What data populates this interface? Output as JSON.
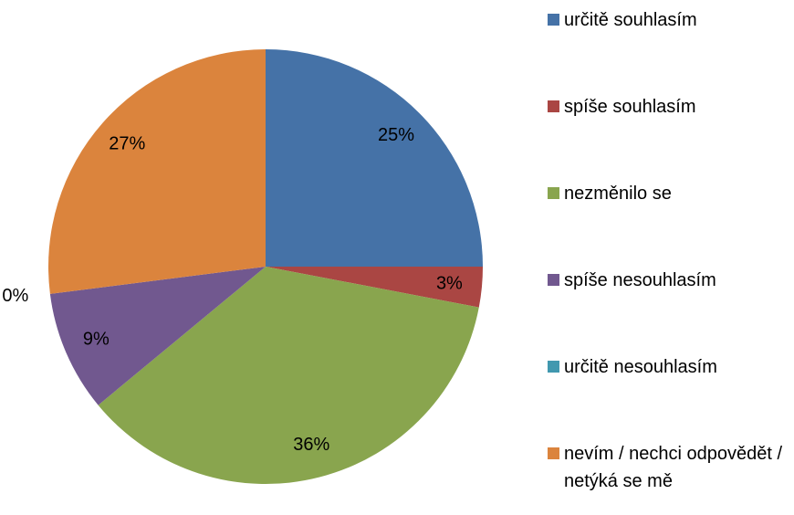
{
  "chart_data": {
    "type": "pie",
    "categories": [
      "určitě souhlasím",
      "spíše souhlasím",
      "nezměnilo se",
      "spíše nesouhlasím",
      "určitě nesouhlasím",
      "nevím / nechci odpovědět / netýká se mě"
    ],
    "values": [
      25,
      3,
      36,
      9,
      0,
      27
    ],
    "value_labels": [
      "25%",
      "3%",
      "36%",
      "9%",
      "0%",
      "27%"
    ],
    "colors": [
      "#4572a7",
      "#aa4643",
      "#89a54e",
      "#71588f",
      "#4198af",
      "#db843d"
    ],
    "legend": "right"
  }
}
